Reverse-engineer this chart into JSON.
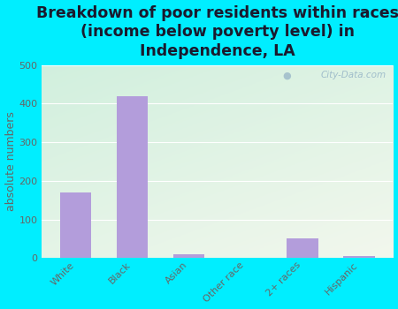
{
  "title": "Breakdown of poor residents within races\n(income below poverty level) in\nIndependence, LA",
  "categories": [
    "White",
    "Black",
    "Asian",
    "Other race",
    "2+ races",
    "Hispanic"
  ],
  "values": [
    170,
    420,
    10,
    0,
    50,
    5
  ],
  "bar_color": "#b39ddb",
  "ylabel": "absolute numbers",
  "ylim": [
    0,
    500
  ],
  "yticks": [
    0,
    100,
    200,
    300,
    400,
    500
  ],
  "bg_outer": "#00eeff",
  "watermark": "City-Data.com",
  "title_fontsize": 12.5,
  "ylabel_fontsize": 9,
  "tick_fontsize": 8,
  "title_color": "#1a1a2e",
  "tick_color": "#666666"
}
